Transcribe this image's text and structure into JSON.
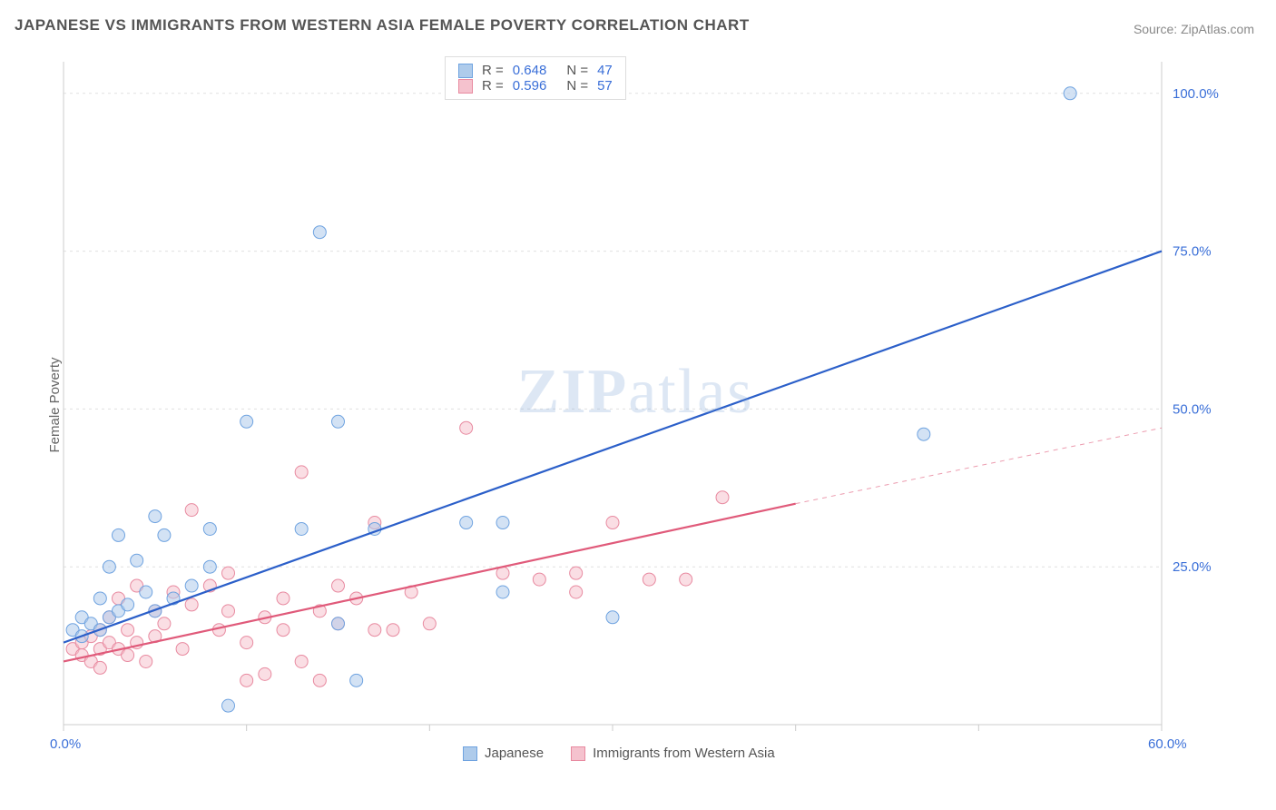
{
  "title": "JAPANESE VS IMMIGRANTS FROM WESTERN ASIA FEMALE POVERTY CORRELATION CHART",
  "source": "Source: ZipAtlas.com",
  "ylabel": "Female Poverty",
  "watermark": {
    "bold": "ZIP",
    "rest": "atlas"
  },
  "chart": {
    "type": "scatter",
    "xlim": [
      0,
      60
    ],
    "ylim": [
      0,
      105
    ],
    "xtick_positions": [
      0,
      10,
      20,
      30,
      40,
      50,
      60
    ],
    "xtick_labels": {
      "0": "0.0%",
      "60": "60.0%"
    },
    "ytick_positions": [
      0,
      25,
      50,
      75,
      100
    ],
    "ytick_labels": {
      "25": "25.0%",
      "50": "50.0%",
      "75": "75.0%",
      "100": "100.0%"
    },
    "grid_color": "#e0e0e0",
    "axis_color": "#cccccc",
    "background_color": "#ffffff",
    "label_color": "#3a6fd8",
    "marker_radius": 7,
    "marker_opacity": 0.55,
    "line_width": 2.2,
    "series": [
      {
        "name": "Japanese",
        "color_fill": "#aecbeb",
        "color_stroke": "#6fa3e0",
        "line_color": "#2b5fc9",
        "R": "0.648",
        "N": "47",
        "trend": {
          "x1": 0,
          "y1": 13,
          "x2": 60,
          "y2": 75
        },
        "points": [
          [
            0.5,
            15
          ],
          [
            1,
            14
          ],
          [
            1,
            17
          ],
          [
            1.5,
            16
          ],
          [
            2,
            20
          ],
          [
            2,
            15
          ],
          [
            2.5,
            17
          ],
          [
            2.5,
            25
          ],
          [
            3,
            18
          ],
          [
            3,
            30
          ],
          [
            3.5,
            19
          ],
          [
            4,
            26
          ],
          [
            4.5,
            21
          ],
          [
            5,
            33
          ],
          [
            5,
            18
          ],
          [
            5.5,
            30
          ],
          [
            6,
            20
          ],
          [
            7,
            22
          ],
          [
            8,
            31
          ],
          [
            8,
            25
          ],
          [
            9,
            3
          ],
          [
            10,
            48
          ],
          [
            13,
            31
          ],
          [
            14,
            78
          ],
          [
            15,
            16
          ],
          [
            15,
            48
          ],
          [
            16,
            7
          ],
          [
            17,
            31
          ],
          [
            22,
            32
          ],
          [
            24,
            21
          ],
          [
            24,
            32
          ],
          [
            30,
            17
          ],
          [
            47,
            46
          ],
          [
            55,
            100
          ]
        ]
      },
      {
        "name": "Immigrants from Western Asia",
        "color_fill": "#f5c2ce",
        "color_stroke": "#e88aa0",
        "line_color": "#e05a7a",
        "R": "0.596",
        "N": "57",
        "trend": {
          "x1": 0,
          "y1": 10,
          "x2": 40,
          "y2": 35,
          "dash_x2": 60,
          "dash_y2": 47
        },
        "points": [
          [
            0.5,
            12
          ],
          [
            1,
            11
          ],
          [
            1,
            13
          ],
          [
            1.5,
            10
          ],
          [
            1.5,
            14
          ],
          [
            2,
            12
          ],
          [
            2,
            15
          ],
          [
            2,
            9
          ],
          [
            2.5,
            13
          ],
          [
            2.5,
            17
          ],
          [
            3,
            12
          ],
          [
            3,
            20
          ],
          [
            3.5,
            11
          ],
          [
            3.5,
            15
          ],
          [
            4,
            22
          ],
          [
            4,
            13
          ],
          [
            4.5,
            10
          ],
          [
            5,
            18
          ],
          [
            5,
            14
          ],
          [
            5.5,
            16
          ],
          [
            6,
            21
          ],
          [
            6.5,
            12
          ],
          [
            7,
            19
          ],
          [
            7,
            34
          ],
          [
            8,
            22
          ],
          [
            8.5,
            15
          ],
          [
            9,
            24
          ],
          [
            9,
            18
          ],
          [
            10,
            13
          ],
          [
            10,
            7
          ],
          [
            11,
            17
          ],
          [
            11,
            8
          ],
          [
            12,
            15
          ],
          [
            12,
            20
          ],
          [
            13,
            10
          ],
          [
            13,
            40
          ],
          [
            14,
            18
          ],
          [
            14,
            7
          ],
          [
            15,
            22
          ],
          [
            15,
            16
          ],
          [
            16,
            20
          ],
          [
            17,
            15
          ],
          [
            17,
            32
          ],
          [
            18,
            15
          ],
          [
            19,
            21
          ],
          [
            20,
            16
          ],
          [
            22,
            47
          ],
          [
            24,
            24
          ],
          [
            26,
            23
          ],
          [
            28,
            21
          ],
          [
            30,
            32
          ],
          [
            32,
            23
          ],
          [
            34,
            23
          ],
          [
            36,
            36
          ],
          [
            28,
            24
          ]
        ]
      }
    ],
    "legend_bottom": [
      {
        "label": "Japanese",
        "fill": "#aecbeb",
        "stroke": "#6fa3e0"
      },
      {
        "label": "Immigrants from Western Asia",
        "fill": "#f5c2ce",
        "stroke": "#e88aa0"
      }
    ]
  }
}
